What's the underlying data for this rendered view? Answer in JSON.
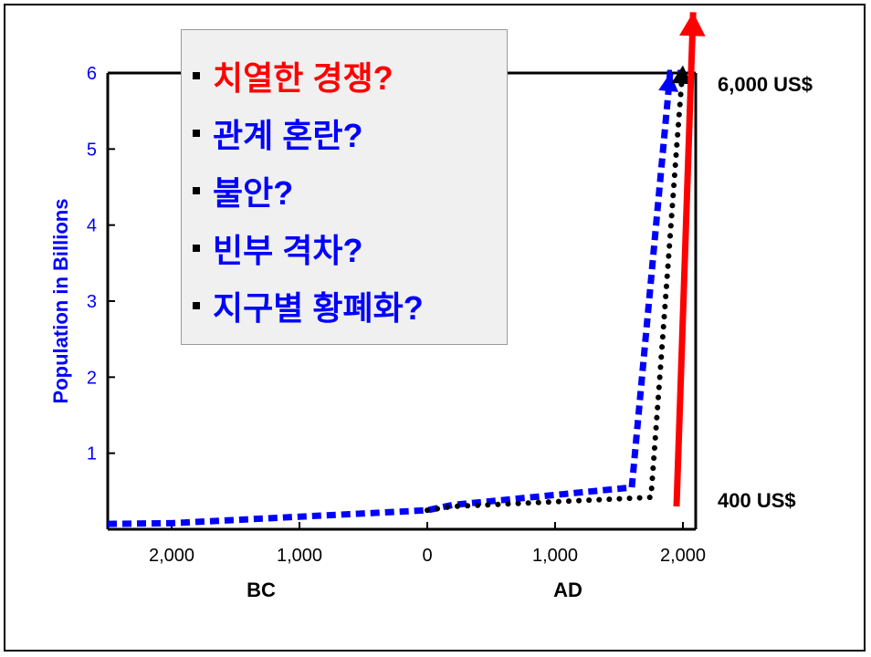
{
  "chart_data": {
    "type": "line",
    "ylabel": "Population in Billions",
    "ylim": [
      0,
      6
    ],
    "yticks": [
      1,
      2,
      3,
      4,
      5,
      6
    ],
    "xlim": [
      -2500,
      2100
    ],
    "xticks": [
      {
        "value": -2000,
        "label": "2,000"
      },
      {
        "value": -1000,
        "label": "1,000"
      },
      {
        "value": 0,
        "label": "0"
      },
      {
        "value": 1000,
        "label": "1,000"
      },
      {
        "value": 2000,
        "label": "2,000"
      }
    ],
    "era_labels": [
      {
        "label": "BC",
        "at": -1300
      },
      {
        "label": "AD",
        "at": 1100
      }
    ],
    "series": [
      {
        "style": "blue-dashed",
        "color": "#0000ff",
        "x": [
          -2500,
          -2000,
          0,
          200,
          1600,
          1900,
          2000
        ],
        "y": [
          0.07,
          0.08,
          0.25,
          0.32,
          0.55,
          6.0,
          6.0
        ],
        "end_arrow": true
      },
      {
        "style": "black-dotted",
        "color": "#000000",
        "x": [
          0,
          200,
          1750,
          1950,
          2000
        ],
        "y": [
          0.25,
          0.3,
          0.42,
          5.0,
          6.1
        ],
        "end_arrow": true
      },
      {
        "style": "red-solid",
        "color": "#ff0000",
        "x": [
          1950,
          2080
        ],
        "y": [
          0.3,
          6.8
        ],
        "end_arrow": true
      }
    ],
    "annotations": [
      {
        "text": "6,000 US$",
        "x": 2100,
        "y": 5.9
      },
      {
        "text": "400 US$",
        "x": 2100,
        "y": 0.3
      }
    ]
  },
  "legend_box": {
    "items": [
      {
        "text": "치열한 경쟁?",
        "color": "#ff0000"
      },
      {
        "text": "관계 혼란?",
        "color": "#0000ff"
      },
      {
        "text": "불안?",
        "color": "#0000ff"
      },
      {
        "text": "빈부 격차?",
        "color": "#0000ff"
      },
      {
        "text": "지구별 황폐화?",
        "color": "#0000ff"
      }
    ]
  }
}
